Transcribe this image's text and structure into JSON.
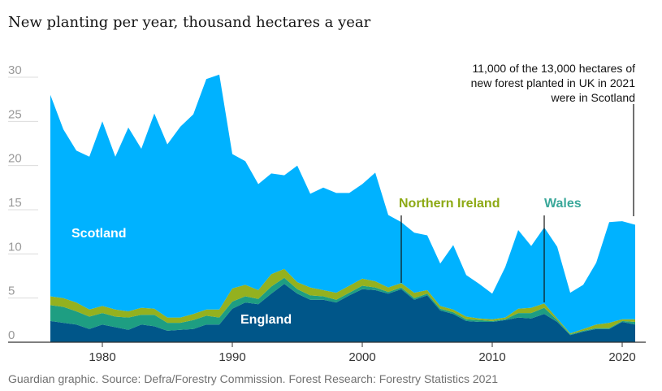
{
  "title": "New planting per year, thousand hectares a year",
  "source": "Guardian graphic. Source: Defra/Forestry Commission. Forest Research: Forestry Statistics 2021",
  "colors": {
    "scotland": "#00b2ff",
    "northern_ireland": "#94b11f",
    "wales": "#1e9e82",
    "england": "#005689",
    "label_scotland": "#ffffff",
    "label_england": "#ffffff",
    "label_ni": "#8da914",
    "label_wales": "#3aa89a"
  },
  "chart_data": {
    "type": "area",
    "stacked": true,
    "title": "New planting per year, thousand hectares a year",
    "xlabel": "",
    "ylabel": "",
    "ylim": [
      0,
      30
    ],
    "xlim": [
      1976,
      2021
    ],
    "yticks": [
      0,
      5,
      10,
      15,
      20,
      25,
      30
    ],
    "xticks": [
      1980,
      1990,
      2000,
      2010,
      2020
    ],
    "grid": true,
    "x": [
      1976,
      1977,
      1978,
      1979,
      1980,
      1981,
      1982,
      1983,
      1984,
      1985,
      1986,
      1987,
      1988,
      1989,
      1990,
      1991,
      1992,
      1993,
      1994,
      1995,
      1996,
      1997,
      1998,
      1999,
      2000,
      2001,
      2002,
      2003,
      2004,
      2005,
      2006,
      2007,
      2008,
      2009,
      2010,
      2011,
      2012,
      2013,
      2014,
      2015,
      2016,
      2017,
      2018,
      2019,
      2020,
      2021
    ],
    "series": [
      {
        "name": "England",
        "key": "england",
        "values": [
          2.4,
          2.2,
          2.0,
          1.5,
          2.0,
          1.7,
          1.4,
          2.0,
          1.8,
          1.3,
          1.4,
          1.5,
          2.0,
          2.0,
          3.8,
          4.5,
          4.3,
          5.5,
          6.6,
          5.5,
          4.8,
          4.8,
          4.5,
          5.3,
          6.0,
          5.9,
          5.5,
          6.0,
          4.8,
          5.3,
          3.6,
          3.2,
          2.4,
          2.3,
          2.3,
          2.5,
          2.8,
          2.7,
          3.2,
          2.3,
          0.8,
          1.2,
          1.5,
          1.5,
          2.3,
          2.0
        ]
      },
      {
        "name": "Wales",
        "key": "wales",
        "values": [
          1.8,
          1.8,
          1.5,
          1.4,
          1.3,
          1.2,
          1.4,
          1.1,
          1.3,
          0.9,
          0.8,
          1.0,
          1.0,
          0.8,
          0.8,
          0.7,
          0.6,
          0.8,
          0.7,
          0.5,
          0.5,
          0.4,
          0.3,
          0.3,
          0.4,
          0.3,
          0.2,
          0.2,
          0.2,
          0.2,
          0.2,
          0.2,
          0.2,
          0.2,
          0.1,
          0.1,
          0.5,
          0.6,
          0.7,
          0.2,
          0.1,
          0.1,
          0.1,
          0.1,
          0.1,
          0.3
        ]
      },
      {
        "name": "Northern Ireland",
        "key": "ni",
        "values": [
          1.0,
          1.0,
          1.0,
          0.8,
          0.8,
          0.8,
          0.7,
          0.8,
          0.7,
          0.6,
          0.6,
          0.7,
          0.7,
          0.9,
          1.5,
          1.3,
          1.0,
          1.4,
          1.0,
          0.8,
          0.9,
          0.7,
          0.8,
          0.8,
          0.8,
          0.7,
          0.5,
          0.5,
          0.6,
          0.4,
          0.3,
          0.3,
          0.3,
          0.2,
          0.2,
          0.2,
          0.5,
          0.6,
          0.5,
          0.2,
          0.1,
          0.2,
          0.4,
          0.6,
          0.2,
          0.3
        ]
      },
      {
        "name": "Scotland",
        "key": "scotland",
        "values": [
          22.8,
          19.1,
          17.2,
          17.3,
          20.9,
          17.3,
          20.8,
          18.0,
          22.1,
          19.6,
          21.6,
          22.6,
          26.1,
          26.6,
          15.2,
          14.0,
          12.0,
          11.4,
          10.6,
          13.2,
          10.6,
          11.6,
          11.3,
          10.5,
          10.7,
          12.3,
          8.2,
          6.9,
          6.8,
          6.2,
          4.8,
          7.3,
          4.7,
          3.9,
          2.9,
          5.7,
          8.9,
          7.0,
          8.6,
          8.1,
          4.6,
          5.0,
          7.0,
          11.4,
          11.1,
          10.7
        ]
      }
    ],
    "labels": {
      "scotland": "Scotland",
      "england": "England",
      "northern_ireland": "Northern Ireland",
      "wales": "Wales"
    },
    "annotations": [
      {
        "text_lines": [
          "11,000 of the 13,000 hectares of",
          "new forest planted in UK in 2021",
          "were in Scotland"
        ],
        "x": 2021
      }
    ]
  }
}
